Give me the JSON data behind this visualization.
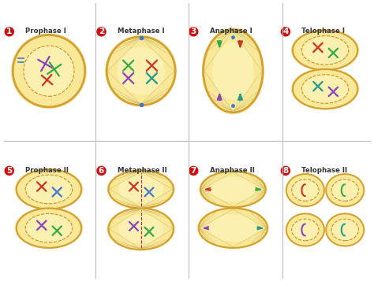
{
  "bg_color": "#ffffff",
  "grid_line_color": "#bbbbbb",
  "cell_fill": "#f0d870",
  "cell_edge": "#d4a030",
  "cell_edge_lw": 1.8,
  "nucleus_edge": "#c8922a",
  "labels": [
    "Prophase I",
    "Metaphase I",
    "Anaphase I",
    "Telophase I",
    "Prophase II",
    "Metaphase II",
    "Anaphase II",
    "Telophase II"
  ],
  "numbers": [
    "1",
    "2",
    "3",
    "4",
    "5",
    "6",
    "7",
    "8"
  ],
  "number_bg": "#cc1111",
  "number_fg": "#ffffff",
  "spindle_color": "#d4c070",
  "chr_purple": "#8844bb",
  "chr_green": "#33aa44",
  "chr_red": "#cc3322",
  "chr_teal": "#229988",
  "chr_blue": "#4477cc",
  "dashed_color": "#cc2244",
  "cell_inner_glow": "#f8e898"
}
